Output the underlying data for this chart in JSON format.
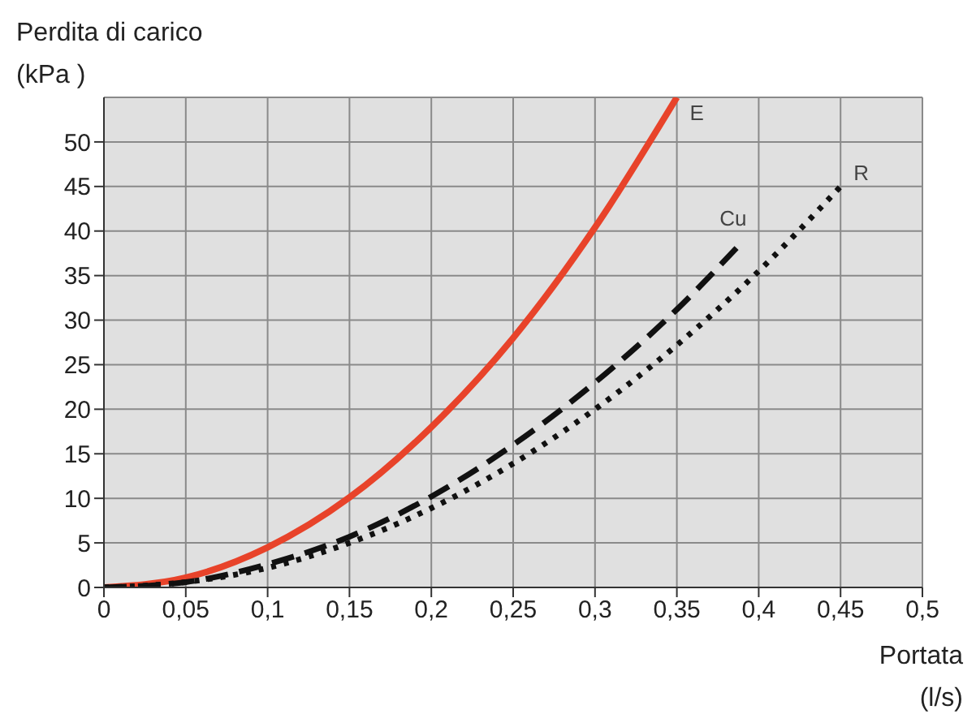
{
  "chart_data": {
    "type": "line",
    "xlabel": "Portata\n(l/s)",
    "ylabel": "Perdita di carico\n(kPa )",
    "xlim": [
      0,
      0.5
    ],
    "ylim": [
      0,
      55
    ],
    "xticks": [
      {
        "value": 0,
        "label": "0"
      },
      {
        "value": 0.05,
        "label": "0,05"
      },
      {
        "value": 0.1,
        "label": "0,1"
      },
      {
        "value": 0.15,
        "label": "0,15"
      },
      {
        "value": 0.2,
        "label": "0,2"
      },
      {
        "value": 0.25,
        "label": "0,25"
      },
      {
        "value": 0.3,
        "label": "0,3"
      },
      {
        "value": 0.35,
        "label": "0,35"
      },
      {
        "value": 0.4,
        "label": "0,4"
      },
      {
        "value": 0.45,
        "label": "0,45"
      },
      {
        "value": 0.5,
        "label": "0,5"
      }
    ],
    "yticks": [
      0,
      5,
      10,
      15,
      20,
      25,
      30,
      35,
      40,
      45,
      50
    ],
    "grid": true,
    "marker": "none",
    "series": [
      {
        "name": "E",
        "color": "#e8432a",
        "line_style": "solid",
        "x": [
          0,
          0.05,
          0.1,
          0.15,
          0.2,
          0.25,
          0.3,
          0.35
        ],
        "values": [
          0,
          1.1,
          4.5,
          10.1,
          18,
          28,
          40.4,
          55
        ]
      },
      {
        "name": "Cu",
        "color": "#111111",
        "line_style": "dashed",
        "x": [
          0,
          0.05,
          0.1,
          0.15,
          0.2,
          0.25,
          0.3,
          0.35,
          0.39
        ],
        "values": [
          0,
          0.6,
          2.6,
          5.7,
          10.2,
          16,
          23,
          31.2,
          38.8
        ]
      },
      {
        "name": "R",
        "color": "#111111",
        "line_style": "dotted",
        "x": [
          0,
          0.05,
          0.1,
          0.15,
          0.2,
          0.25,
          0.3,
          0.35,
          0.4,
          0.45
        ],
        "values": [
          0,
          0.6,
          2.2,
          5,
          8.9,
          13.9,
          20,
          27.2,
          35.5,
          45
        ]
      }
    ]
  }
}
